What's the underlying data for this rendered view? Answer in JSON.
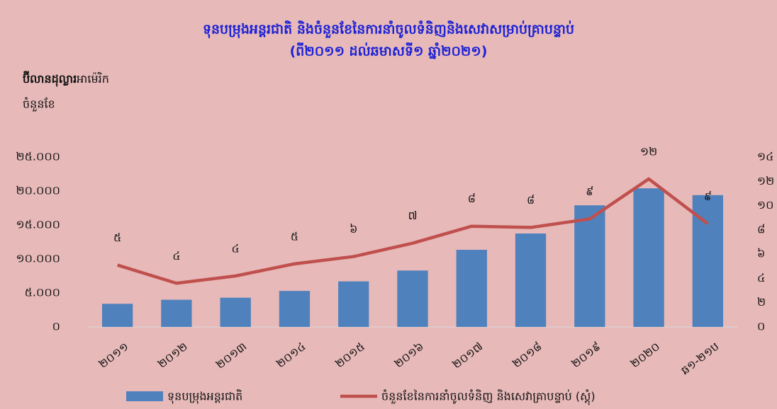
{
  "chart_data": {
    "type": "bar_line",
    "title": "ទុនបម្រុងអន្តរជាតិ និងចំនួនខែនៃការនាំចូលទំនិញនិងសេវាសម្រាប់គ្រាបន្ទាប់",
    "subtitle": "(ពី២០១១ ដល់ឆមាសទី១ ឆ្នាំ២០២១)",
    "ylabel": [
      "ប៊ីលានដុល្លារ",
      "អាម៉េរិក"
    ],
    "y2label": "ចំនួនខែ",
    "categories": [
      "២០១១",
      "២០១២",
      "២០១៣",
      "២០១៤",
      "២០១៥",
      "២០១៦",
      "២០១៧",
      "២០១៨",
      "២០១៩",
      "២០២០",
      "ឆ១-២១ប"
    ],
    "series": [
      {
        "name": "ទុនបម្រុងអន្តរជាតិ",
        "color": "#4f81bd",
        "kind": "bar",
        "values": [
          3400,
          4000,
          4300,
          5300,
          6700,
          8300,
          11350,
          13750,
          17900,
          20400,
          19400
        ]
      },
      {
        "name": "ចំនួនខែនៃការនាំចូលទំនិញ និងសេវាគ្រាបន្ទាប់ (ស្តុំ)",
        "color": "#c0504d",
        "kind": "line",
        "axis": "y2",
        "values": [
          5.1,
          3.6,
          4.2,
          5.2,
          5.8,
          6.9,
          8.3,
          8.2,
          8.9,
          12.2,
          8.5
        ],
        "value_labels": [
          "៥",
          "៤",
          "៤",
          "៥",
          "៦",
          "៧",
          "៨",
          "៨",
          "៩",
          "១២",
          "៩"
        ]
      }
    ],
    "ylim": [
      0,
      25000
    ],
    "yticks": [
      {
        "value": 0,
        "label": "០"
      },
      {
        "value": 5000,
        "label": "៥.០០០"
      },
      {
        "value": 10000,
        "label": "១០.០០០"
      },
      {
        "value": 15000,
        "label": "១៥.០០០"
      },
      {
        "value": 20000,
        "label": "២០.០០០"
      },
      {
        "value": 25000,
        "label": "២៥.០០០"
      }
    ],
    "y2lim": [
      0,
      14
    ],
    "y2ticks": [
      {
        "value": 0,
        "label": "០"
      },
      {
        "value": 2,
        "label": "២"
      },
      {
        "value": 4,
        "label": "៤"
      },
      {
        "value": 6,
        "label": "៦"
      },
      {
        "value": 8,
        "label": "៨"
      },
      {
        "value": 10,
        "label": "១០"
      },
      {
        "value": 12,
        "label": "១២"
      },
      {
        "value": 14,
        "label": "១៤"
      }
    ],
    "grid": false,
    "legend": "bottom"
  }
}
